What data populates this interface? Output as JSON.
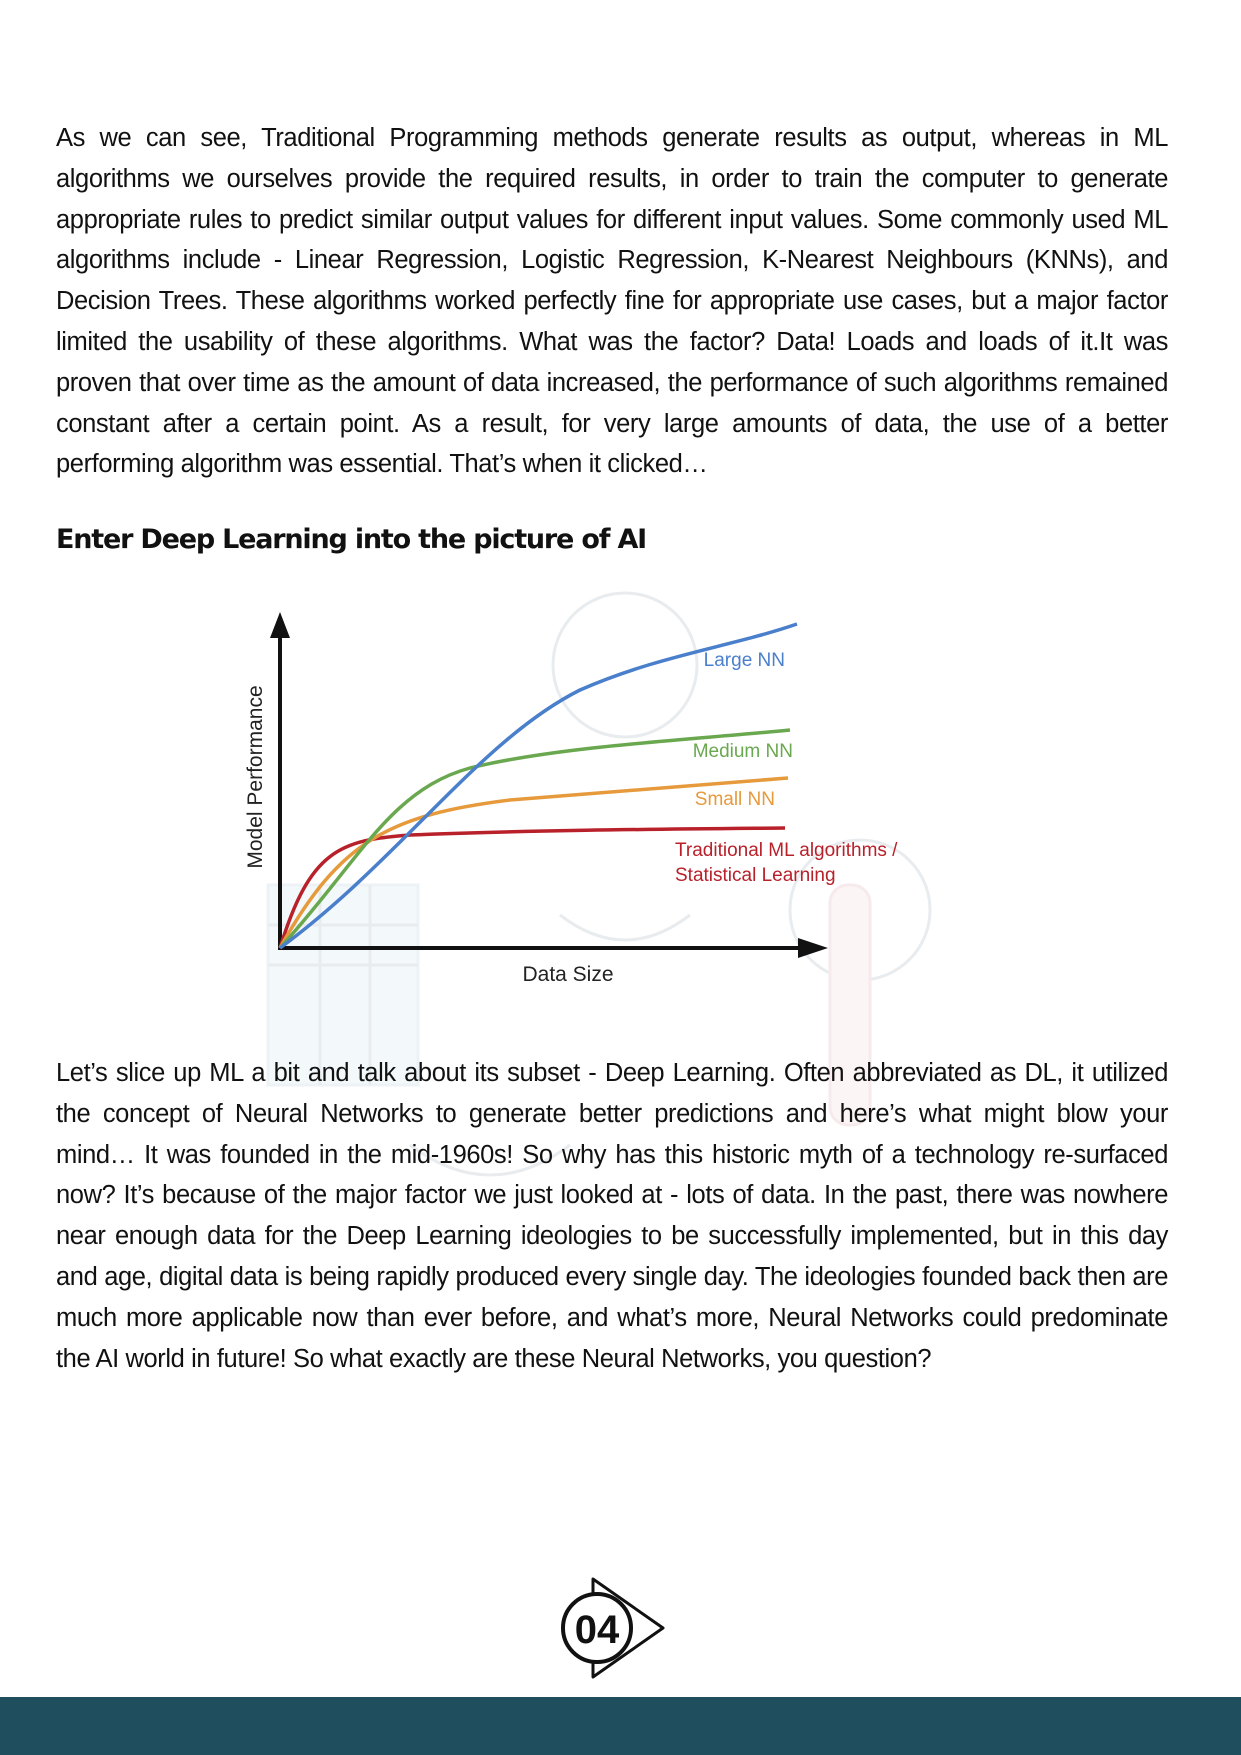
{
  "paragraphs": {
    "p1": "As we can see, Traditional Programming methods generate results as output, whereas in ML algorithms we ourselves provide the required results, in order to train the computer to generate appropriate rules to predict similar output values for different input values. Some commonly used ML algorithms include - Linear Regression, Logistic Regression, K-Nearest Neighbours (KNNs), and Decision Trees. These algorithms worked perfectly fine for appropriate use cases, but a major factor limited the usability of these algorithms. What was the factor? Data! Loads and loads of it.It was proven that over time as the amount of data increased, the performance of such algorithms remained constant after a certain point. As a result, for very large amounts of data, the use of a better performing algorithm was essential. That’s when it clicked…",
    "p2": "Let’s slice up ML a bit and talk about its subset - Deep Learning. Often abbreviated as DL, it utilized the concept of Neural Networks to generate better predictions and here’s what might blow your mind… It was founded in the mid-1960s! So why has this historic myth of a technology re-surfaced now? It’s because of the major factor we just looked at - lots of data. In the past, there was nowhere near enough data for the Deep Learning ideologies to be successfully implemented, but in this day and age, digital data is being rapidly produced every single day. The ideologies founded back then are much more applicable now than ever before, and what’s more, Neural Networks could predominate the AI world in future! So what exactly are these Neural Networks, you question?"
  },
  "heading": "Enter Deep Learning into the picture of AI",
  "chart_data": {
    "type": "line",
    "xlabel": "Data Size",
    "ylabel": "Model Performance",
    "series": [
      {
        "name": "Large NN",
        "color": "#4a7fcc"
      },
      {
        "name": "Medium NN",
        "color": "#6aa84f"
      },
      {
        "name": "Small NN",
        "color": "#e69a3c"
      },
      {
        "name": "Traditional ML algorithms /",
        "name_line2": "Statistical Learning",
        "color": "#b8202a"
      }
    ]
  },
  "page_number": "04",
  "colors": {
    "footer": "#1f4e5e",
    "text": "#111111"
  }
}
